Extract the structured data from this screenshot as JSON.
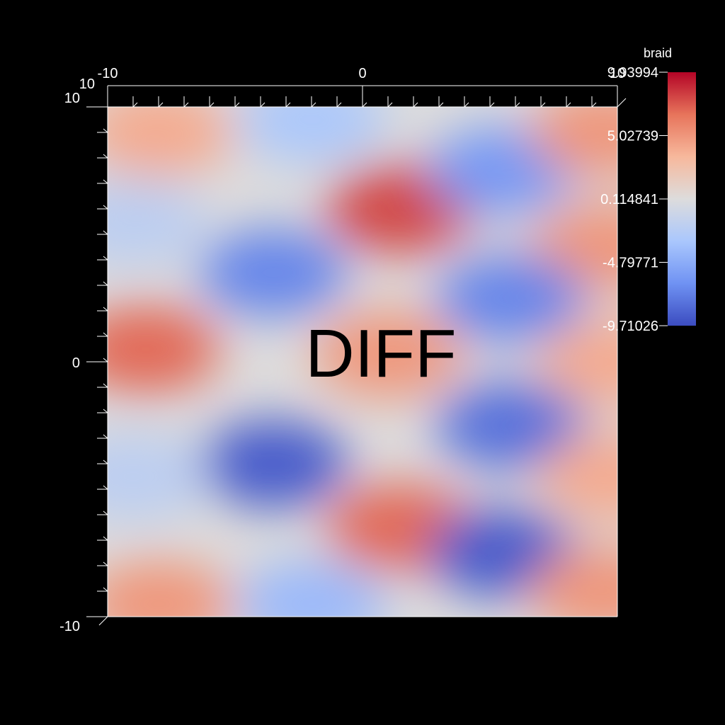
{
  "chart_data": {
    "type": "heatmap",
    "title": "",
    "xlabel": "",
    "ylabel": "",
    "xlim": [
      -10,
      10
    ],
    "ylim": [
      -10,
      10
    ],
    "x_tick_labels": [
      "-10",
      "0",
      "10"
    ],
    "x_ticks": [
      -10,
      0,
      10
    ],
    "y_tick_labels": [
      "10",
      "0",
      "-10"
    ],
    "y_ticks": [
      10,
      0,
      -10
    ],
    "overlay_text": "DIFF",
    "colorbar": {
      "title": "braid",
      "range": [
        -9.71026,
        9.93994
      ],
      "tick_values": [
        9.93994,
        5.02739,
        0.114841,
        -4.79771,
        -9.71026
      ],
      "tick_labels": [
        "9.93994",
        "5.02739",
        "0.114841",
        "-4.79771",
        "-9.71026"
      ],
      "colormap": [
        "#3b4cc0",
        "#6f92f3",
        "#aac7fd",
        "#dddcdc",
        "#f7b89c",
        "#e7745b",
        "#b40426"
      ]
    },
    "field_blobs": [
      {
        "x": -8,
        "y": 9,
        "value": 4
      },
      {
        "x": -2,
        "y": 9.5,
        "value": -3
      },
      {
        "x": 1.5,
        "y": 6,
        "value": 8
      },
      {
        "x": 5.5,
        "y": 7.5,
        "value": -6
      },
      {
        "x": 9.5,
        "y": 9,
        "value": 5
      },
      {
        "x": -3.5,
        "y": 3.5,
        "value": -7
      },
      {
        "x": 9.5,
        "y": 4.5,
        "value": 5
      },
      {
        "x": 5.8,
        "y": 2.5,
        "value": -7
      },
      {
        "x": -8.5,
        "y": 0.5,
        "value": 7
      },
      {
        "x": 1.0,
        "y": 0.3,
        "value": 5
      },
      {
        "x": 9.8,
        "y": 0.0,
        "value": 4
      },
      {
        "x": -3.5,
        "y": -4,
        "value": -9
      },
      {
        "x": 5.8,
        "y": -2.5,
        "value": -8
      },
      {
        "x": 1.5,
        "y": -6.5,
        "value": 7
      },
      {
        "x": 9.8,
        "y": -4.5,
        "value": 4
      },
      {
        "x": -8,
        "y": -9.5,
        "value": 5
      },
      {
        "x": -2,
        "y": -9.5,
        "value": -4
      },
      {
        "x": 5.5,
        "y": -7.5,
        "value": -9
      },
      {
        "x": 9.5,
        "y": -9,
        "value": 5
      },
      {
        "x": -9,
        "y": -4.5,
        "value": -2
      },
      {
        "x": -9,
        "y": 5.5,
        "value": -2
      }
    ]
  }
}
